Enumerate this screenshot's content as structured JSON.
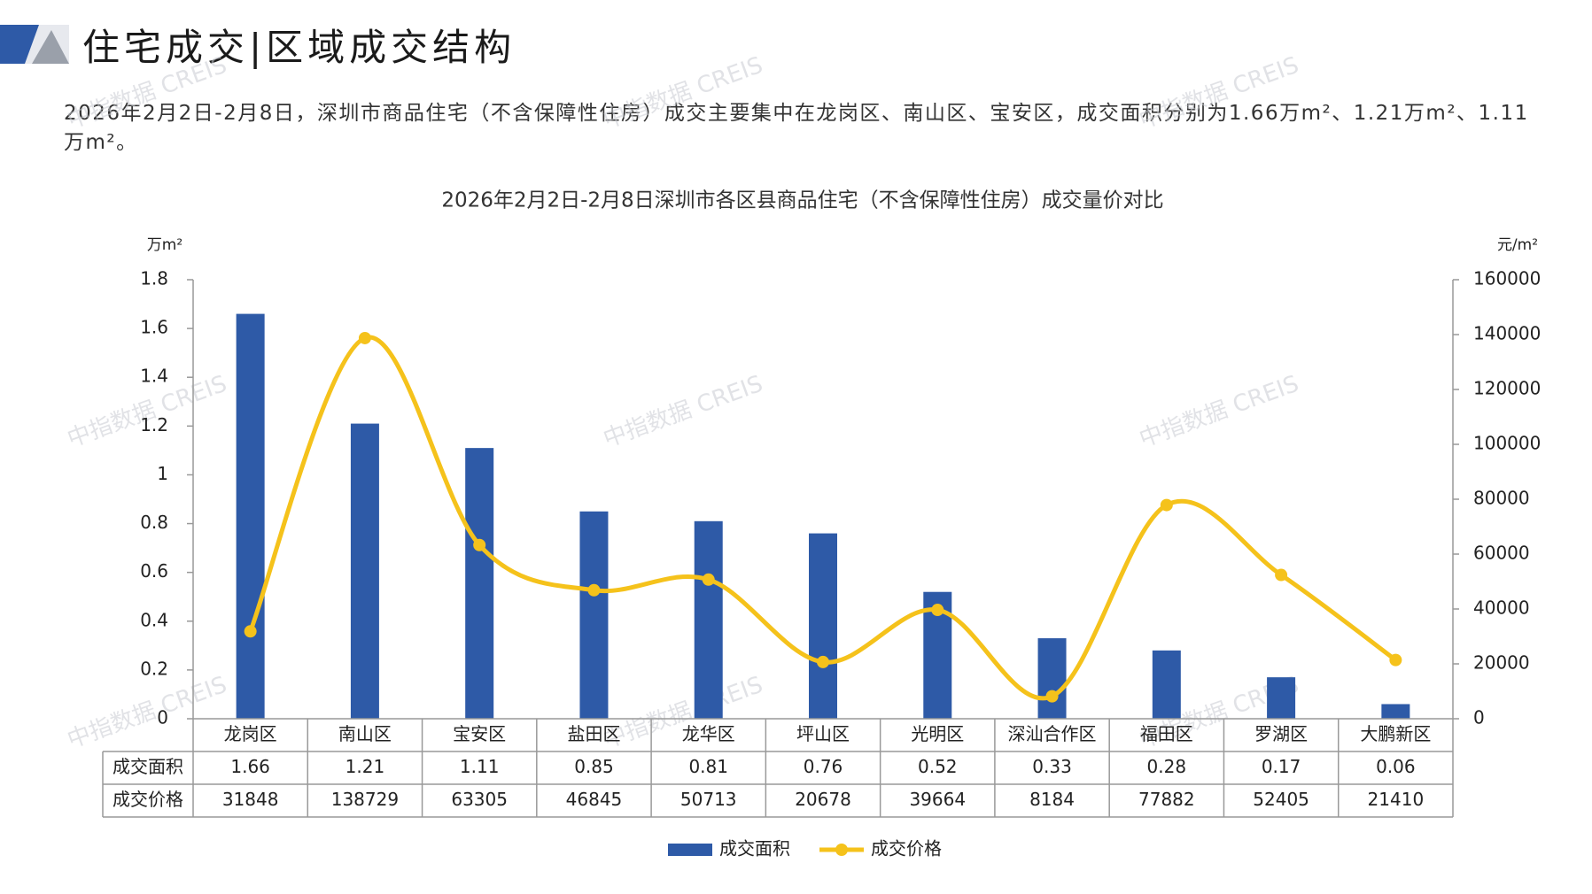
{
  "header": {
    "title": "住宅成交|区域成交结构",
    "summary": "2026年2月2日-2月8日，深圳市商品住宅（不含保障性住房）成交主要集中在龙岗区、南山区、宝安区，成交面积分别为1.66万m²、1.21万m²、1.11万m²。"
  },
  "colors": {
    "bar": "#2e5aa7",
    "line": "#f5c21b",
    "logo_blue": "#2e5aa7",
    "logo_gray": "#9aa0aa"
  },
  "watermark": {
    "text": "中指数据 CREIS"
  },
  "chart_data": {
    "type": "bar",
    "title": "2026年2月2日-2月8日深圳市各区县商品住宅（不含保障性住房）成交量价对比",
    "categories": [
      "龙岗区",
      "南山区",
      "宝安区",
      "盐田区",
      "龙华区",
      "坪山区",
      "光明区",
      "深汕合作区",
      "福田区",
      "罗湖区",
      "大鹏新区"
    ],
    "series": [
      {
        "name": "成交面积",
        "type": "bar",
        "axis": "left",
        "values": [
          1.66,
          1.21,
          1.11,
          0.85,
          0.81,
          0.76,
          0.52,
          0.33,
          0.28,
          0.17,
          0.06
        ],
        "labels": [
          "1.66",
          "1.21",
          "1.11",
          "0.85",
          "0.81",
          "0.76",
          "0.52",
          "0.33",
          "0.28",
          "0.17",
          "0.06"
        ]
      },
      {
        "name": "成交价格",
        "type": "line",
        "axis": "right",
        "smooth": true,
        "values": [
          31848,
          138729,
          63305,
          46845,
          50713,
          20678,
          39664,
          8184,
          77882,
          52405,
          21410
        ],
        "labels": [
          "31848",
          "138729",
          "63305",
          "46845",
          "50713",
          "20678",
          "39664",
          "8184",
          "77882",
          "52405",
          "21410"
        ]
      }
    ],
    "y_left": {
      "unit": "万m²",
      "range": [
        0,
        1.8
      ],
      "ticks": [
        "0",
        "0.2",
        "0.4",
        "0.6",
        "0.8",
        "1",
        "1.2",
        "1.4",
        "1.6",
        "1.8"
      ]
    },
    "y_right": {
      "unit": "元/m²",
      "range": [
        0,
        160000
      ],
      "ticks": [
        "0",
        "20000",
        "40000",
        "60000",
        "80000",
        "100000",
        "120000",
        "140000",
        "160000"
      ]
    },
    "grid": false,
    "legend_position": "bottom",
    "data_table": true
  }
}
